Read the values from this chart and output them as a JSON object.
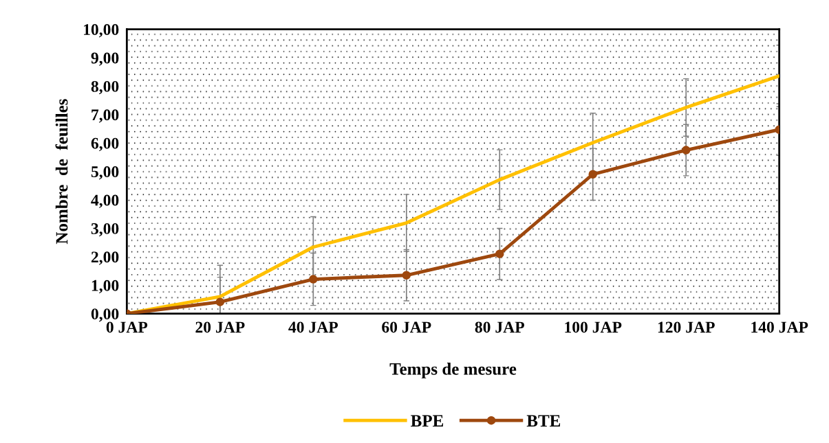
{
  "chart_data": {
    "type": "line",
    "xlabel": "Temps de mesure",
    "ylabel": "Nombre  de  feuilles",
    "categories": [
      "0 JAP",
      "20 JAP",
      "40 JAP",
      "60 JAP",
      "80 JAP",
      "100 JAP",
      "120 JAP",
      "140 JAP"
    ],
    "series": [
      {
        "name": "BPE",
        "color": "#ffc000",
        "marker": "none",
        "values": [
          0,
          0.6,
          2.34,
          3.19,
          4.71,
          6.01,
          7.25,
          8.36
        ],
        "errors": [
          null,
          1.1,
          1.07,
          1.0,
          1.05,
          1.04,
          1.01,
          1.08
        ]
      },
      {
        "name": "BTE",
        "color": "#9e480e",
        "marker": "circle",
        "values": [
          0,
          0.41,
          1.21,
          1.35,
          2.1,
          4.9,
          5.75,
          6.47
        ],
        "errors": [
          null,
          0.87,
          0.92,
          0.9,
          0.9,
          0.91,
          0.9,
          0.91
        ]
      }
    ],
    "ylim": [
      0,
      10
    ],
    "yticks": [
      {
        "value": 0,
        "label": "0,00"
      },
      {
        "value": 1,
        "label": "1,00"
      },
      {
        "value": 2,
        "label": "2,00"
      },
      {
        "value": 3,
        "label": "3,00"
      },
      {
        "value": 4,
        "label": "4,00"
      },
      {
        "value": 5,
        "label": "5,00"
      },
      {
        "value": 6,
        "label": "6,00"
      },
      {
        "value": 7,
        "label": "7,00"
      },
      {
        "value": 8,
        "label": "8,00"
      },
      {
        "value": 9,
        "label": "9,00"
      },
      {
        "value": 10,
        "label": "10,00"
      }
    ],
    "grid": false,
    "legend": "bottom",
    "line_style": "solid"
  }
}
